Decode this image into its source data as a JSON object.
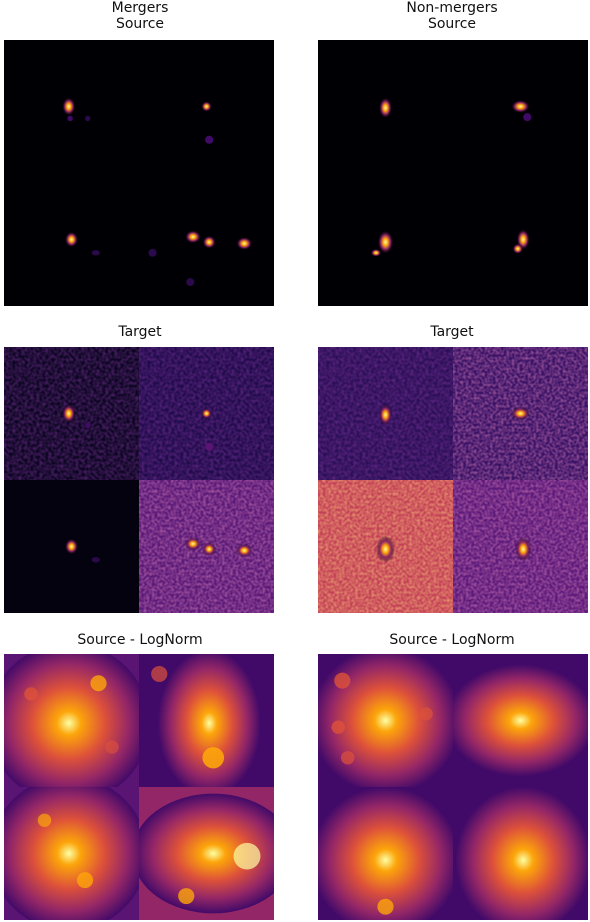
{
  "left": {
    "row1_title_line1": "Mergers",
    "row1_title_line2": "Source",
    "row2_title": "Target",
    "row3_title": "Source - LogNorm"
  },
  "right": {
    "row1_title_line1": "Non-mergers",
    "row1_title_line2": "Source",
    "row2_title": "Target",
    "row3_title": "Source - LogNorm"
  },
  "colormap": [
    "#000004",
    "#420a68",
    "#932667",
    "#dd513a",
    "#fca50a",
    "#fcffa4"
  ]
}
